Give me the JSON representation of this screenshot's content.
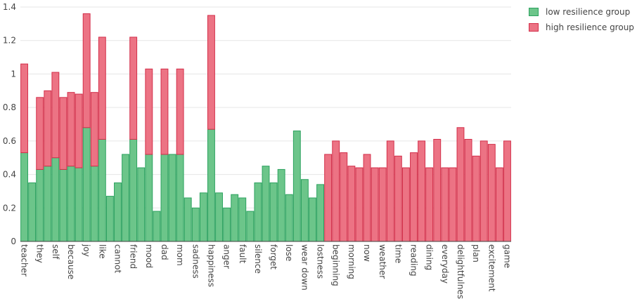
{
  "chart_data": {
    "type": "bar",
    "stacked": true,
    "grid": true,
    "legend_placement": "top-right",
    "ylim": [
      0,
      1.4
    ],
    "yticks": [
      0,
      0.2,
      0.4,
      0.6,
      0.8,
      1,
      1.2,
      1.4
    ],
    "ytick_labels": [
      "0",
      "0.2",
      "0.4",
      "0.6",
      "0.8",
      "1",
      "1.2",
      "1.4"
    ],
    "categories": [
      "teacher",
      "",
      "they",
      "",
      "self",
      "",
      "because",
      "",
      "joy",
      "",
      "like",
      "",
      "cannot",
      "",
      "friend",
      "",
      "mood",
      "",
      "dad",
      "",
      "mom",
      "",
      "sadness",
      "",
      "happiness",
      "",
      "anger",
      "",
      "fault",
      "",
      "silence",
      "",
      "forget",
      "",
      "lose",
      "",
      "wear down",
      "",
      "lostness",
      "",
      "beginning",
      "",
      "morning",
      "",
      "now",
      "",
      "weather",
      "",
      "time",
      "",
      "reading",
      "",
      "dining",
      "",
      "everyday",
      "",
      "delightfulness",
      "",
      "plan",
      "",
      "excitement",
      "",
      "game"
    ],
    "series": [
      {
        "name": "low resilience group",
        "color": "#6cc58a",
        "stroke": "#2ca25f",
        "values": [
          0.53,
          0.35,
          0.43,
          0.45,
          0.5,
          0.43,
          0.45,
          0.44,
          0.68,
          0.45,
          0.61,
          0.27,
          0.35,
          0.52,
          0.61,
          0.44,
          0.52,
          0.18,
          0.52,
          0.52,
          0.52,
          0.26,
          0.2,
          0.29,
          0.67,
          0.29,
          0.2,
          0.28,
          0.26,
          0.18,
          0.35,
          0.45,
          0.35,
          0.43,
          0.28,
          0.66,
          0.37,
          0.26,
          0.34,
          0,
          0,
          0,
          0,
          0,
          0,
          0,
          0,
          0,
          0,
          0,
          0,
          0,
          0,
          0,
          0,
          0,
          0,
          0,
          0,
          0,
          0,
          0,
          0
        ]
      },
      {
        "name": "high resilience group",
        "color": "#ec7384",
        "stroke": "#d32f4a",
        "values": [
          0.53,
          0,
          0.43,
          0.45,
          0.51,
          0.43,
          0.44,
          0.44,
          0.68,
          0.44,
          0.61,
          0,
          0,
          0,
          0.61,
          0,
          0.51,
          0,
          0.51,
          0,
          0.51,
          0,
          0,
          0,
          0.68,
          0,
          0,
          0,
          0,
          0,
          0,
          0,
          0,
          0,
          0,
          0,
          0,
          0,
          0,
          0.52,
          0.6,
          0.53,
          0.45,
          0.44,
          0.52,
          0.44,
          0.44,
          0.6,
          0.51,
          0.44,
          0.53,
          0.6,
          0.44,
          0.61,
          0.44,
          0.44,
          0.68,
          0.61,
          0.51,
          0.6,
          0.58,
          0.44,
          0.6
        ]
      }
    ]
  }
}
